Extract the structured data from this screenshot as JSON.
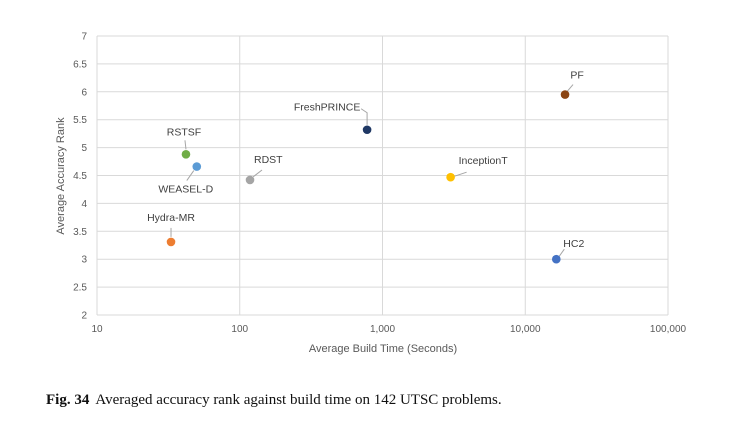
{
  "chart_data": {
    "type": "scatter",
    "xlabel": "Average Build Time (Seconds)",
    "ylabel": "Average Accuracy Rank",
    "xscale": "log",
    "xlim": [
      10,
      100000
    ],
    "ylim": [
      2,
      7
    ],
    "x_ticks": [
      "10",
      "100",
      "1,000",
      "10,000",
      "100,000"
    ],
    "y_ticks": [
      "2",
      "2.5",
      "3",
      "3.5",
      "4",
      "4.5",
      "5",
      "5.5",
      "6",
      "6.5",
      "7"
    ],
    "grid": true,
    "points": [
      {
        "name": "PF",
        "x": 19000,
        "y": 5.95,
        "color": "#8B4513"
      },
      {
        "name": "FreshPRINCE",
        "x": 780,
        "y": 5.32,
        "color": "#1F3864"
      },
      {
        "name": "RSTSF",
        "x": 42,
        "y": 4.88,
        "color": "#70AD47"
      },
      {
        "name": "WEASEL-D",
        "x": 50,
        "y": 4.66,
        "color": "#5B9BD5"
      },
      {
        "name": "InceptionT",
        "x": 3000,
        "y": 4.47,
        "color": "#FFC000"
      },
      {
        "name": "RDST",
        "x": 118,
        "y": 4.42,
        "color": "#A5A5A5"
      },
      {
        "name": "Hydra-MR",
        "x": 33,
        "y": 3.31,
        "color": "#ED7D31"
      },
      {
        "name": "HC2",
        "x": 16500,
        "y": 3.0,
        "color": "#4472C4"
      }
    ]
  },
  "caption": {
    "label": "Fig. 34",
    "text": "Averaged accuracy rank against build time on 142 UTSC problems."
  }
}
